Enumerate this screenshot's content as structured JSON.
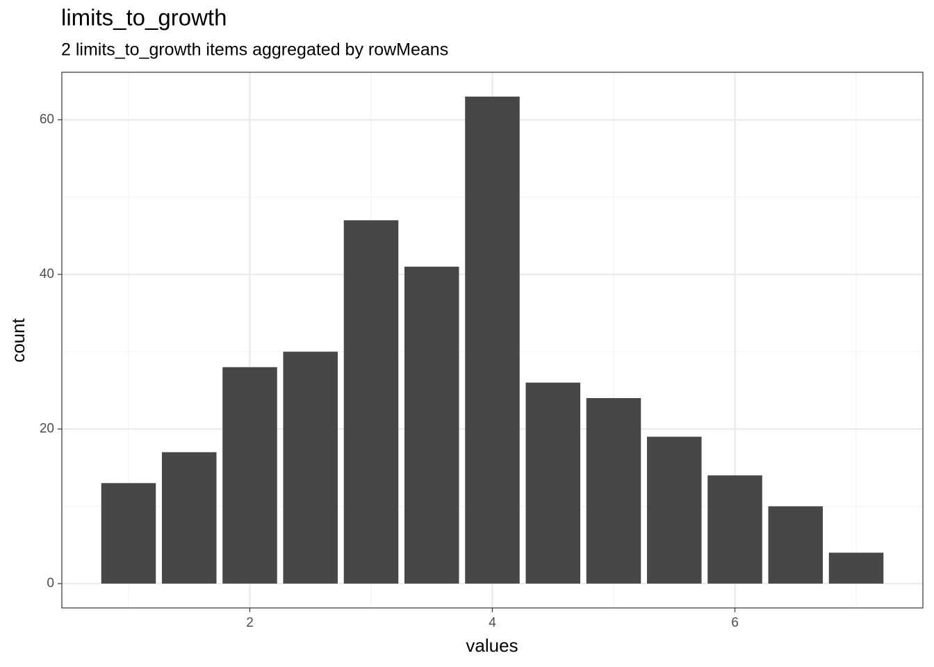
{
  "chart_data": {
    "type": "bar",
    "title": "limits_to_growth",
    "subtitle": "2 limits_to_growth items aggregated by rowMeans",
    "x_label": "values",
    "y_label": "count",
    "x": [
      1,
      1.5,
      2,
      2.5,
      3,
      3.5,
      4,
      4.5,
      5,
      5.5,
      6,
      6.5,
      7
    ],
    "values": [
      13,
      17,
      28,
      30,
      47,
      41,
      63,
      26,
      24,
      19,
      14,
      10,
      4
    ],
    "color": "#474747",
    "xlim": [
      0.45,
      7.55
    ],
    "xticks": [
      2,
      4,
      6
    ],
    "xminor": [
      1,
      3,
      5,
      7
    ],
    "ylim": [
      -3.15,
      66.15
    ],
    "yticks": [
      0,
      20,
      40,
      60
    ],
    "yminor": [
      10,
      30,
      50
    ],
    "grid": true
  }
}
